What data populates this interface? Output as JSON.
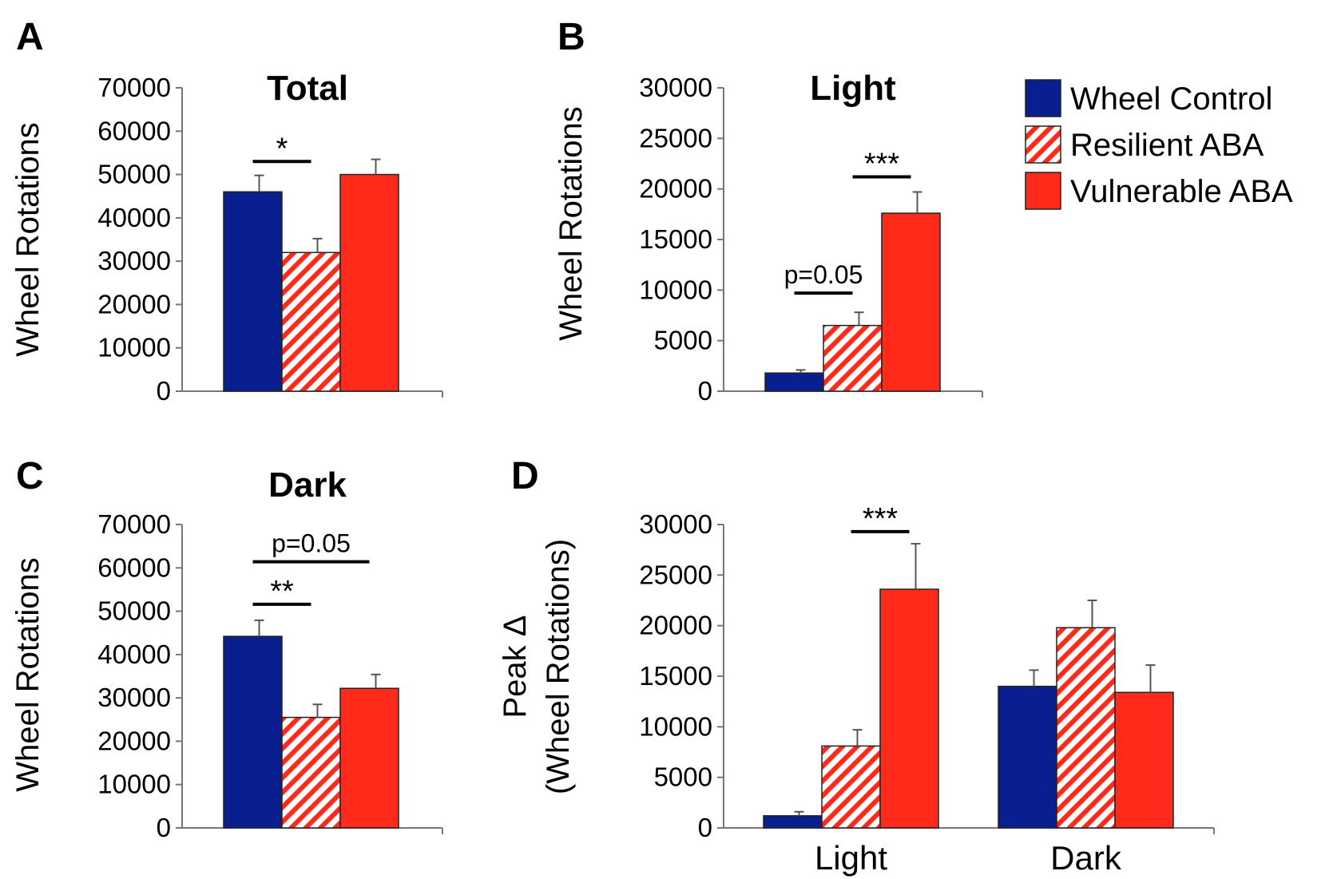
{
  "series_styles": {
    "Wheel Control": {
      "fill": "#0a1f8f",
      "pattern": "solid"
    },
    "Resilient ABA": {
      "fill": "#ff2a1a",
      "pattern": "hatch"
    },
    "Vulnerable ABA": {
      "fill": "#ff2a1a",
      "pattern": "solid"
    }
  },
  "legend": {
    "placement": "top-right",
    "items": [
      "Wheel Control",
      "Resilient ABA",
      "Vulnerable ABA"
    ]
  },
  "chart_data": [
    {
      "id": "A",
      "panel_letter": "A",
      "type": "bar",
      "title": "Total",
      "ylabel": "Wheel Rotations",
      "ylabel2": "",
      "ylim": [
        0,
        70000
      ],
      "yticks": [
        "0",
        "10000",
        "20000",
        "30000",
        "40000",
        "50000",
        "60000",
        "70000"
      ],
      "categories": [
        ""
      ],
      "series": [
        {
          "name": "Wheel Control",
          "values": [
            46000
          ],
          "errors": [
            3800
          ]
        },
        {
          "name": "Resilient ABA",
          "values": [
            32000
          ],
          "errors": [
            3200
          ]
        },
        {
          "name": "Vulnerable ABA",
          "values": [
            50000
          ],
          "errors": [
            3500
          ]
        }
      ],
      "annotations": [
        {
          "label": "*",
          "kind": "sig",
          "category": 0,
          "from": 0,
          "to": 1,
          "y": 53000
        }
      ]
    },
    {
      "id": "B",
      "panel_letter": "B",
      "type": "bar",
      "title": "Light",
      "ylabel": "Wheel Rotations",
      "ylabel2": "",
      "ylim": [
        0,
        30000
      ],
      "yticks": [
        "0",
        "5000",
        "10000",
        "15000",
        "20000",
        "25000",
        "30000"
      ],
      "categories": [
        ""
      ],
      "series": [
        {
          "name": "Wheel Control",
          "values": [
            1800
          ],
          "errors": [
            300
          ]
        },
        {
          "name": "Resilient ABA",
          "values": [
            6500
          ],
          "errors": [
            1300
          ]
        },
        {
          "name": "Vulnerable ABA",
          "values": [
            17600
          ],
          "errors": [
            2100
          ]
        }
      ],
      "annotations": [
        {
          "label": "p=0.05",
          "kind": "p",
          "category": 0,
          "from": 0,
          "to": 1,
          "y": 9700
        },
        {
          "label": "***",
          "kind": "sig",
          "category": 0,
          "from": 1,
          "to": 2,
          "y": 21200
        }
      ]
    },
    {
      "id": "C",
      "panel_letter": "C",
      "type": "bar",
      "title": "Dark",
      "ylabel": "Wheel Rotations",
      "ylabel2": "",
      "ylim": [
        0,
        70000
      ],
      "yticks": [
        "0",
        "10000",
        "20000",
        "30000",
        "40000",
        "50000",
        "60000",
        "70000"
      ],
      "categories": [
        ""
      ],
      "series": [
        {
          "name": "Wheel Control",
          "values": [
            44200
          ],
          "errors": [
            3700
          ]
        },
        {
          "name": "Resilient ABA",
          "values": [
            25500
          ],
          "errors": [
            3000
          ]
        },
        {
          "name": "Vulnerable ABA",
          "values": [
            32200
          ],
          "errors": [
            3200
          ]
        }
      ],
      "annotations": [
        {
          "label": "**",
          "kind": "sig",
          "category": 0,
          "from": 0,
          "to": 1,
          "y": 51600
        },
        {
          "label": "p=0.05",
          "kind": "p",
          "category": 0,
          "from": 0,
          "to": 2,
          "y": 61400
        }
      ]
    },
    {
      "id": "D",
      "panel_letter": "D",
      "type": "bar",
      "title": "",
      "ylabel": "Peak Δ",
      "ylabel2": "(Wheel Rotations)",
      "ylim": [
        0,
        30000
      ],
      "yticks": [
        "0",
        "5000",
        "10000",
        "15000",
        "20000",
        "25000",
        "30000"
      ],
      "categories": [
        "Light",
        "Dark"
      ],
      "series": [
        {
          "name": "Wheel Control",
          "values": [
            1200,
            14000
          ],
          "errors": [
            400,
            1600
          ]
        },
        {
          "name": "Resilient ABA",
          "values": [
            8100,
            19800
          ],
          "errors": [
            1600,
            2700
          ]
        },
        {
          "name": "Vulnerable ABA",
          "values": [
            23600,
            13400
          ],
          "errors": [
            4500,
            2700
          ]
        }
      ],
      "annotations": [
        {
          "label": "***",
          "kind": "sig",
          "category": 0,
          "from": 1,
          "to": 2,
          "y": 29300
        }
      ]
    }
  ]
}
